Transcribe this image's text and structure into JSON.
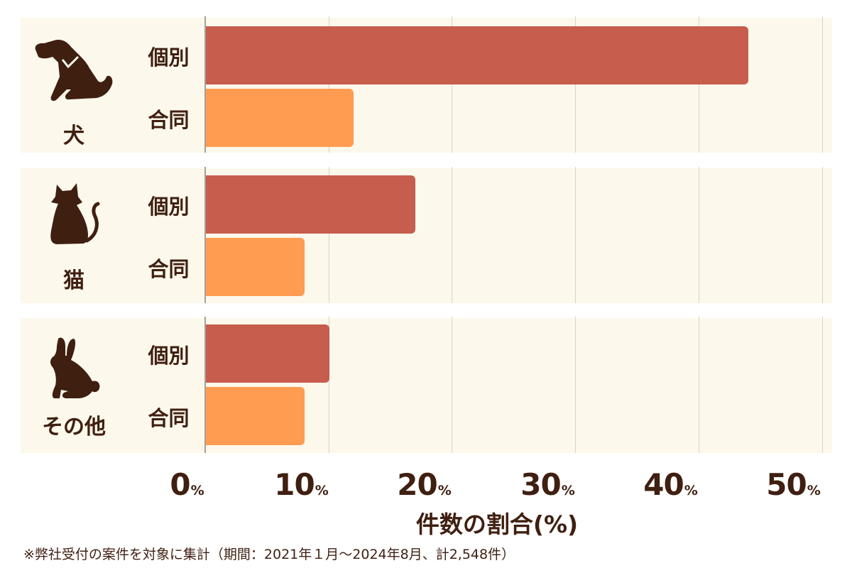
{
  "chart_data": {
    "type": "bar",
    "orientation": "horizontal",
    "title": "",
    "xlabel": "件数の割合(%)",
    "ylabel": "",
    "xlim": [
      0,
      50
    ],
    "x_ticks": [
      "0%",
      "10%",
      "20%",
      "30%",
      "40%",
      "50%"
    ],
    "grid": true,
    "groups": [
      "犬",
      "猫",
      "その他"
    ],
    "categories": [
      "個別",
      "合同"
    ],
    "series": [
      {
        "name": "個別",
        "color": "#c75d4c",
        "values": [
          44,
          17,
          10
        ]
      },
      {
        "name": "合同",
        "color": "#ff9c51",
        "values": [
          12,
          8,
          8
        ]
      }
    ],
    "note": "※弊社受付の案件を対象に集計（期間：2021年１月～2024年8月、計2,548件）"
  },
  "groups": [
    {
      "label": "犬",
      "icon": "dog-icon",
      "rows": [
        {
          "label": "個別",
          "value": 44
        },
        {
          "label": "合同",
          "value": 12
        }
      ]
    },
    {
      "label": "猫",
      "icon": "cat-icon",
      "rows": [
        {
          "label": "個別",
          "value": 17
        },
        {
          "label": "合同",
          "value": 8
        }
      ]
    },
    {
      "label": "その他",
      "icon": "rabbit-icon",
      "rows": [
        {
          "label": "個別",
          "value": 10
        },
        {
          "label": "合同",
          "value": 8
        }
      ]
    }
  ],
  "axis": {
    "ticks": [
      {
        "num": "0",
        "unit": "%"
      },
      {
        "num": "10",
        "unit": "%"
      },
      {
        "num": "20",
        "unit": "%"
      },
      {
        "num": "30",
        "unit": "%"
      },
      {
        "num": "40",
        "unit": "%"
      },
      {
        "num": "50",
        "unit": "%"
      }
    ],
    "label": "件数の割合(%)"
  },
  "footnote": "※弊社受付の案件を対象に集計（期間：2021年１月～2024年8月、計2,548件）",
  "colors": {
    "individual": "#c75d4c",
    "joint": "#ff9c51",
    "panel_bg": "#fcf8ec",
    "text": "#3f1f10"
  }
}
